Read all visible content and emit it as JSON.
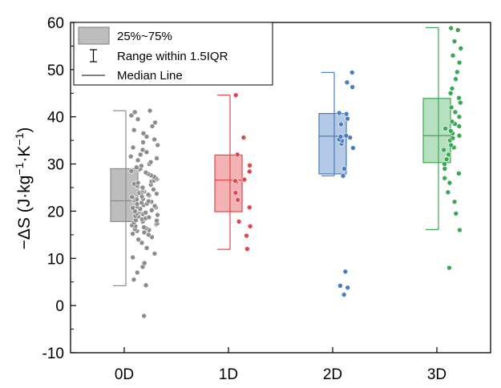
{
  "chart_data": {
    "type": "box",
    "ylabel_parts": [
      "−ΔS (J·kg",
      "−1",
      "·K",
      "−1",
      ")"
    ],
    "ylim": [
      -10,
      60
    ],
    "yticks": [
      -10,
      0,
      10,
      20,
      30,
      40,
      50,
      60
    ],
    "categories": [
      "0D",
      "1D",
      "2D",
      "3D"
    ],
    "legend": {
      "placement": "top-left",
      "entries": [
        "25%~75%",
        "Range within 1.5IQR",
        "Median Line"
      ]
    },
    "series": [
      {
        "category": "0D",
        "color": "#8c8c8c",
        "fill": "#bdbdbd",
        "q1": 17.8,
        "median": 22.2,
        "q3": 29.0,
        "whisker_low": 4.2,
        "whisker_high": 41.3,
        "points": [
          -2.2,
          4.3,
          5.5,
          7.0,
          8.2,
          9.0,
          10.2,
          11.0,
          12.2,
          13.3,
          14.0,
          14.5,
          15.0,
          15.2,
          15.5,
          15.8,
          16.0,
          16.2,
          16.4,
          16.6,
          16.8,
          17.0,
          17.2,
          17.4,
          17.6,
          17.8,
          18.0,
          18.1,
          18.3,
          18.5,
          18.7,
          18.9,
          19.0,
          19.2,
          19.4,
          19.5,
          19.7,
          19.9,
          20.0,
          20.2,
          20.3,
          20.5,
          20.7,
          20.8,
          21.0,
          21.1,
          21.3,
          21.5,
          21.6,
          21.8,
          22.0,
          22.1,
          22.3,
          22.5,
          22.6,
          22.8,
          23.0,
          23.1,
          23.3,
          23.5,
          23.7,
          23.9,
          24.0,
          24.2,
          24.4,
          24.6,
          24.8,
          25.0,
          25.2,
          25.4,
          25.6,
          25.8,
          26.0,
          26.3,
          26.5,
          26.8,
          27.0,
          27.3,
          27.6,
          27.9,
          28.2,
          28.5,
          28.8,
          29.0,
          29.3,
          29.6,
          30.0,
          30.4,
          30.8,
          31.2,
          31.6,
          32.0,
          32.5,
          33.0,
          33.5,
          34.0,
          34.6,
          35.2,
          35.8,
          36.5,
          37.2,
          38.0,
          38.8,
          39.5,
          40.3,
          41.0,
          41.3
        ]
      },
      {
        "category": "1D",
        "color": "#e0474c",
        "fill": "#f3b3b5",
        "q1": 19.9,
        "median": 26.6,
        "q3": 31.9,
        "whisker_low": 11.9,
        "whisker_high": 44.6,
        "points": [
          12.0,
          14.8,
          16.8,
          17.8,
          20.8,
          22.4,
          23.9,
          26.2,
          26.4,
          26.7,
          28.4,
          29.7,
          32.0,
          35.6,
          44.6
        ]
      },
      {
        "category": "2D",
        "color": "#4a7cc2",
        "fill": "#b4c9e6",
        "q1": 27.9,
        "median": 35.9,
        "q3": 40.7,
        "whisker_low": 27.5,
        "whisker_high": 49.4,
        "points": [
          2.3,
          3.8,
          4.2,
          7.2,
          27.5,
          29.0,
          33.4,
          34.3,
          34.9,
          35.2,
          35.6,
          35.8,
          36.0,
          38.4,
          39.6,
          40.6,
          40.8,
          46.3,
          47.3,
          49.4
        ]
      },
      {
        "category": "3D",
        "color": "#3aa852",
        "fill": "#b6e0c0",
        "q1": 30.3,
        "median": 36.0,
        "q3": 43.9,
        "whisker_low": 16.1,
        "whisker_high": 58.9,
        "points": [
          8.0,
          16.0,
          19.5,
          22.0,
          24.0,
          26.0,
          27.0,
          28.0,
          29.0,
          30.0,
          31.0,
          32.0,
          33.0,
          33.5,
          34.0,
          35.0,
          35.5,
          36.0,
          36.5,
          37.0,
          37.5,
          38.0,
          38.5,
          39.0,
          40.0,
          41.0,
          42.0,
          43.0,
          44.0,
          45.0,
          46.0,
          48.0,
          49.5,
          51.5,
          53.0,
          54.5,
          56.0,
          58.4,
          58.8
        ]
      }
    ]
  }
}
